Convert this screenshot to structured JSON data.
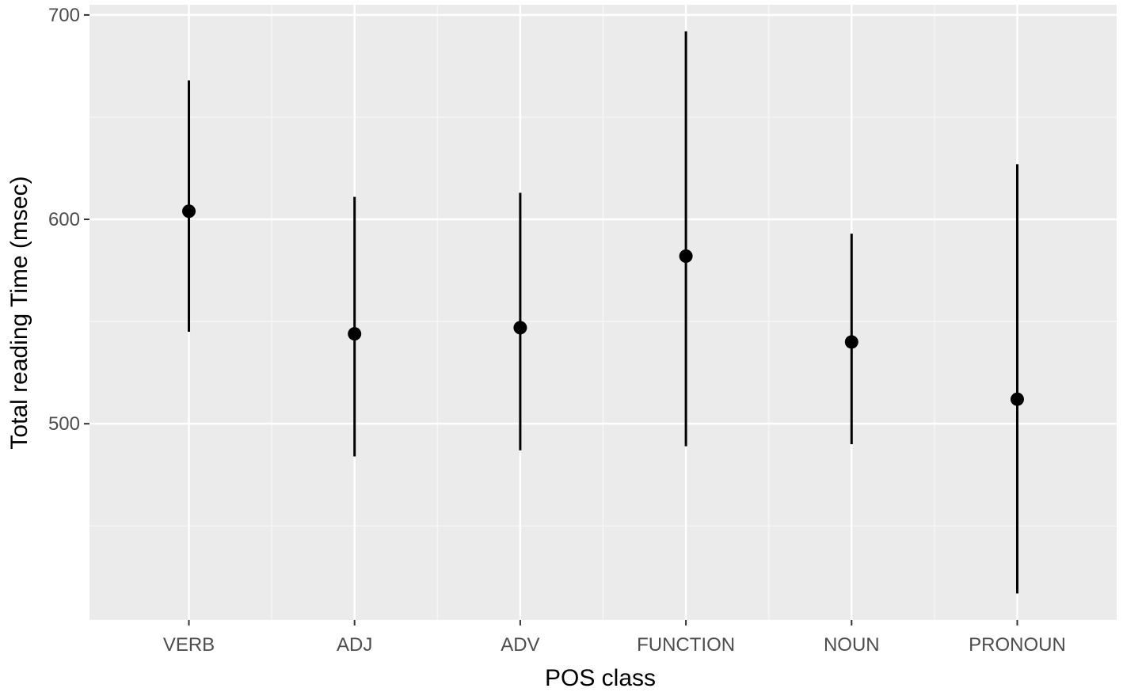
{
  "chart_data": {
    "type": "scatter",
    "subtype": "pointrange",
    "title": "",
    "xlabel": "POS class",
    "ylabel": "Total reading Time (msec)",
    "categories": [
      "VERB",
      "ADJ",
      "ADV",
      "FUNCTION",
      "NOUN",
      "PRONOUN"
    ],
    "values": [
      604,
      544,
      547,
      582,
      540,
      512
    ],
    "lower": [
      545,
      484,
      487,
      489,
      490,
      417
    ],
    "upper": [
      668,
      611,
      613,
      692,
      593,
      627
    ],
    "ylim": [
      404,
      705
    ],
    "y_ticks": [
      500,
      600,
      700
    ],
    "y_tick_labels": [
      "500",
      "600",
      "700"
    ],
    "grid": true,
    "colors": {
      "panel_background": "#ebebeb",
      "grid_major": "#ffffff",
      "grid_minor": "#f5f5f5",
      "points": "#000000",
      "tick_text": "#4d4d4d",
      "tick_marks": "#333333"
    }
  }
}
